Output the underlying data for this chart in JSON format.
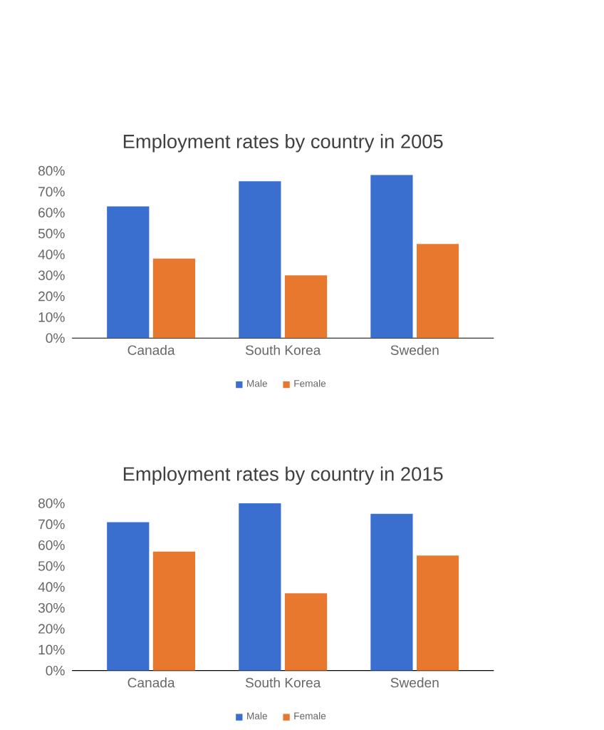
{
  "chart_data": [
    {
      "type": "bar",
      "title": "Employment rates by country in 2005",
      "categories": [
        "Canada",
        "South Korea",
        "Sweden"
      ],
      "series": [
        {
          "name": "Male",
          "color": "#3a6fd0",
          "values": [
            63,
            75,
            78
          ]
        },
        {
          "name": "Female",
          "color": "#e8782e",
          "values": [
            38,
            30,
            45
          ]
        }
      ],
      "ylim": [
        0,
        80
      ],
      "yticks": [
        {
          "value": 0,
          "label": "0%"
        },
        {
          "value": 10,
          "label": "10%"
        },
        {
          "value": 20,
          "label": "20%"
        },
        {
          "value": 30,
          "label": "30%"
        },
        {
          "value": 40,
          "label": "40%"
        },
        {
          "value": 50,
          "label": "50%"
        },
        {
          "value": 60,
          "label": "60%"
        },
        {
          "value": 70,
          "label": "70%"
        },
        {
          "value": 80,
          "label": "80%"
        }
      ],
      "legend": "bottom"
    },
    {
      "type": "bar",
      "title": "Employment rates by country in 2015",
      "categories": [
        "Canada",
        "South Korea",
        "Sweden"
      ],
      "series": [
        {
          "name": "Male",
          "color": "#3a6fd0",
          "values": [
            71,
            80,
            75
          ]
        },
        {
          "name": "Female",
          "color": "#e8782e",
          "values": [
            57,
            37,
            55
          ]
        }
      ],
      "ylim": [
        0,
        80
      ],
      "yticks": [
        {
          "value": 0,
          "label": "0%"
        },
        {
          "value": 10,
          "label": "10%"
        },
        {
          "value": 20,
          "label": "20%"
        },
        {
          "value": 30,
          "label": "30%"
        },
        {
          "value": 40,
          "label": "40%"
        },
        {
          "value": 50,
          "label": "50%"
        },
        {
          "value": 60,
          "label": "60%"
        },
        {
          "value": 70,
          "label": "70%"
        },
        {
          "value": 80,
          "label": "80%"
        }
      ],
      "legend": "bottom"
    }
  ]
}
